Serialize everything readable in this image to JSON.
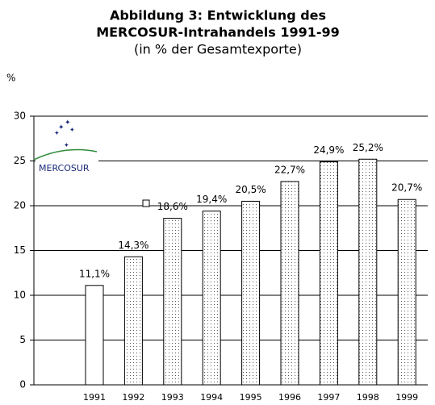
{
  "chart_data": {
    "type": "bar",
    "title": [
      "Abbildung 3: Entwicklung des",
      "MERCOSUR-Intrahandels 1991-99"
    ],
    "subtitle": "(in % der Gesamtexporte)",
    "y_label": "%",
    "logo": "MERCOSUR",
    "categories": [
      "1991",
      "1992",
      "1993",
      "1994",
      "1995",
      "1996",
      "1997",
      "1998",
      "1999"
    ],
    "values": [
      11.1,
      14.3,
      18.6,
      19.4,
      20.5,
      22.7,
      24.9,
      25.2,
      20.7
    ],
    "value_labels": [
      "11,1%",
      "14,3%",
      "18,6%",
      "19,4%",
      "20,5%",
      "22,7%",
      "24,9%",
      "25,2%",
      "20,7%"
    ],
    "bar_styles": [
      "plain",
      "dotted",
      "dotted",
      "dotted",
      "dotted",
      "dotted",
      "dotted",
      "dotted",
      "dotted"
    ],
    "ylim": [
      0,
      30
    ],
    "yticks": [
      0,
      5,
      10,
      15,
      20,
      25,
      30
    ],
    "grid": true
  }
}
